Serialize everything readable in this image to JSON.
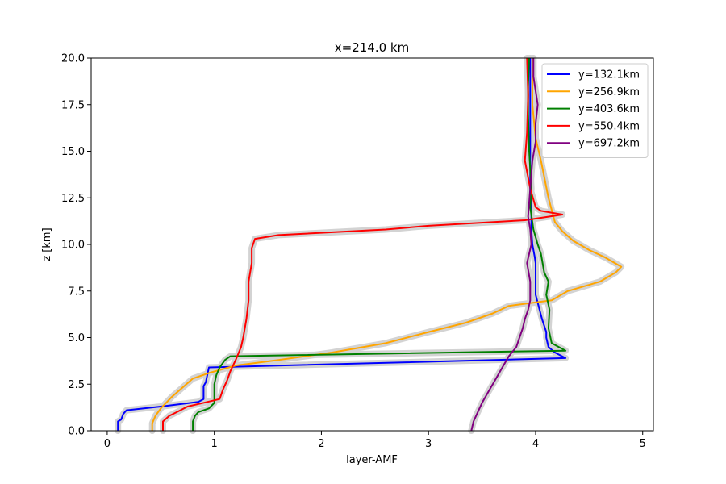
{
  "chart_data": {
    "type": "line",
    "title": "x=214.0 km",
    "xlabel": "layer-AMF",
    "ylabel": "z [km]",
    "xlim": [
      -0.15,
      5.1
    ],
    "ylim": [
      0,
      20
    ],
    "xticks": [
      0,
      1,
      2,
      3,
      4,
      5
    ],
    "xtick_labels": [
      "0",
      "1",
      "2",
      "3",
      "4",
      "5"
    ],
    "yticks": [
      0,
      2.5,
      5,
      7.5,
      10,
      12.5,
      15,
      17.5,
      20
    ],
    "ytick_labels": [
      "0.0",
      "2.5",
      "5.0",
      "7.5",
      "10.0",
      "12.5",
      "15.0",
      "17.5",
      "20.0"
    ],
    "grid": false,
    "legend_position": "upper right",
    "band_color": "#d3d3d3",
    "series": [
      {
        "name": "y=132.1km",
        "color": "#0000ff",
        "x": [
          0.1,
          0.1,
          0.13,
          0.15,
          0.18,
          0.5,
          0.85,
          0.9,
          0.9,
          0.92,
          0.95,
          4.28,
          4.18,
          4.12,
          4.1,
          4.1,
          4.06,
          4.0,
          4.0,
          4.0,
          3.99,
          3.97,
          3.96,
          3.96,
          3.95,
          3.95,
          3.95,
          3.95,
          3.95,
          3.95
        ],
        "y": [
          0,
          0.5,
          0.6,
          0.9,
          1.1,
          1.3,
          1.55,
          1.7,
          2.4,
          2.6,
          3.4,
          3.9,
          4.2,
          4.5,
          5.0,
          5.3,
          6.0,
          7.3,
          8.0,
          9.0,
          9.4,
          10.0,
          10.8,
          12.0,
          13.0,
          15.0,
          16.5,
          18.0,
          19.0,
          20.0
        ]
      },
      {
        "name": "y=256.9km",
        "color": "#ffa500",
        "x": [
          0.42,
          0.42,
          0.45,
          0.5,
          0.6,
          0.7,
          0.8,
          0.95,
          1.2,
          1.6,
          2.1,
          2.6,
          3.0,
          3.35,
          3.6,
          3.75,
          4.15,
          4.3,
          4.6,
          4.75,
          4.8,
          4.65,
          4.5,
          4.35,
          4.25,
          4.18,
          4.12,
          4.05,
          4.0,
          3.97,
          3.97
        ],
        "y": [
          0,
          0.4,
          0.8,
          1.2,
          1.8,
          2.3,
          2.8,
          3.1,
          3.5,
          3.8,
          4.2,
          4.7,
          5.3,
          5.8,
          6.3,
          6.7,
          7.0,
          7.5,
          8.0,
          8.5,
          8.8,
          9.3,
          9.7,
          10.2,
          10.7,
          11.2,
          12.5,
          14.5,
          15.7,
          17.5,
          20.0
        ]
      },
      {
        "name": "y=403.6km",
        "color": "#008000",
        "x": [
          0.8,
          0.8,
          0.82,
          0.85,
          0.95,
          1.0,
          1.0,
          1.02,
          1.05,
          1.1,
          1.15,
          4.28,
          4.15,
          4.12,
          4.13,
          4.1,
          4.12,
          4.08,
          4.05,
          4.02,
          3.98,
          3.95,
          3.96,
          3.94,
          3.93,
          3.93,
          3.94
        ],
        "y": [
          0,
          0.5,
          0.8,
          1.0,
          1.2,
          1.5,
          2.5,
          3.0,
          3.4,
          3.8,
          4.0,
          4.3,
          4.7,
          5.5,
          6.5,
          7.3,
          8.0,
          8.5,
          9.5,
          10.0,
          10.8,
          12.0,
          13.0,
          15.0,
          17.0,
          18.5,
          20.0
        ]
      },
      {
        "name": "y=550.4km",
        "color": "#ff0000",
        "x": [
          0.52,
          0.52,
          0.58,
          0.65,
          0.75,
          1.05,
          1.08,
          1.12,
          1.15,
          1.2,
          1.25,
          1.27,
          1.3,
          1.32,
          1.32,
          1.35,
          1.35,
          1.38,
          1.6,
          2.6,
          3.0,
          3.9,
          4.25,
          4.05,
          4.0,
          3.95,
          3.9,
          3.92,
          3.93,
          3.92
        ],
        "y": [
          0,
          0.5,
          0.8,
          1.0,
          1.3,
          1.7,
          2.2,
          2.7,
          3.2,
          3.8,
          4.5,
          5.0,
          6.0,
          7.0,
          8.0,
          9.0,
          9.8,
          10.3,
          10.5,
          10.8,
          11.0,
          11.3,
          11.6,
          11.8,
          12.0,
          13.0,
          14.5,
          16.0,
          18.0,
          20.0
        ]
      },
      {
        "name": "y=697.2km",
        "color": "#800080",
        "x": [
          3.4,
          3.42,
          3.46,
          3.5,
          3.55,
          3.6,
          3.65,
          3.7,
          3.75,
          3.82,
          3.85,
          3.88,
          3.9,
          3.93,
          3.95,
          3.95,
          3.92,
          3.96,
          3.95,
          3.93,
          3.95,
          3.97,
          4.0,
          4.0,
          4.02,
          3.98,
          3.98
        ],
        "y": [
          0,
          0.5,
          1.0,
          1.5,
          2.0,
          2.5,
          3.0,
          3.5,
          4.0,
          4.5,
          5.0,
          5.5,
          6.0,
          6.5,
          7.0,
          8.0,
          9.0,
          10.0,
          10.8,
          11.5,
          13.0,
          14.5,
          15.5,
          16.5,
          17.5,
          19.0,
          20.0
        ]
      }
    ]
  }
}
